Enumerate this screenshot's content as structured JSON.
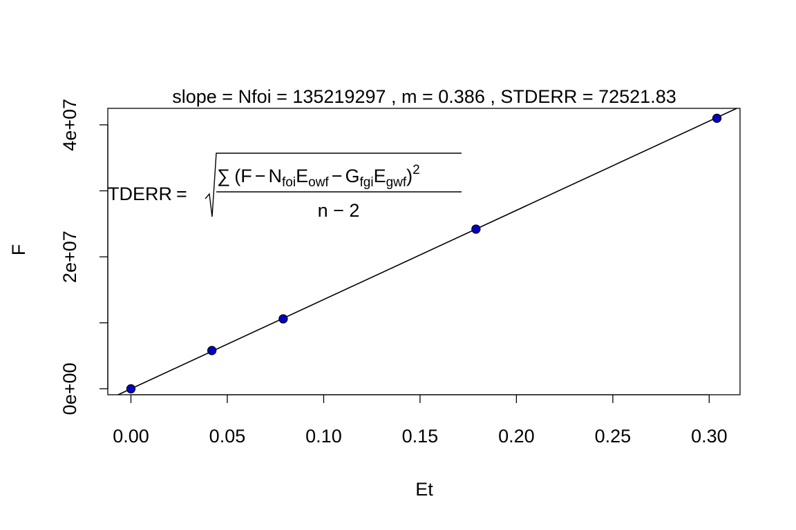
{
  "chart_data": {
    "type": "scatter",
    "title": "slope = Nfoi =  135219297 , m =  0.386  , STDERR =  72521.83",
    "xlabel": "Et",
    "ylabel": "F",
    "x_ticks": [
      "0.00",
      "0.05",
      "0.10",
      "0.15",
      "0.20",
      "0.25",
      "0.30"
    ],
    "x_tick_values": [
      0,
      0.05,
      0.1,
      0.15,
      0.2,
      0.25,
      0.3
    ],
    "y_ticks": [
      "0e+00",
      "",
      "2e+07",
      "",
      "4e+07"
    ],
    "y_tick_values": [
      0,
      10000000,
      20000000,
      30000000,
      40000000
    ],
    "xlim": [
      -0.012,
      0.316
    ],
    "ylim": [
      -900000,
      42500000
    ],
    "grid": false,
    "points": {
      "x": [
        0.0,
        0.042,
        0.079,
        0.179,
        0.304
      ],
      "y": [
        0,
        5800000,
        10600000,
        24200000,
        41000000
      ],
      "color": "#0000cc"
    },
    "fit_line": {
      "intercept": 0,
      "slope": 135219297
    },
    "annotation": {
      "lhs": "TDERR",
      "equals": "=",
      "sum": "∑",
      "open_paren": "(",
      "F": "F",
      "minus1": "−",
      "N": "N",
      "N_sub": "foi",
      "E1": "E",
      "E1_sub": "owf",
      "minus2": "−",
      "G": "G",
      "G_sub": "fgi",
      "E2": "E",
      "E2_sub": "gwf",
      "close_paren": ")",
      "exponent": "2",
      "denominator": "n − 2"
    }
  }
}
